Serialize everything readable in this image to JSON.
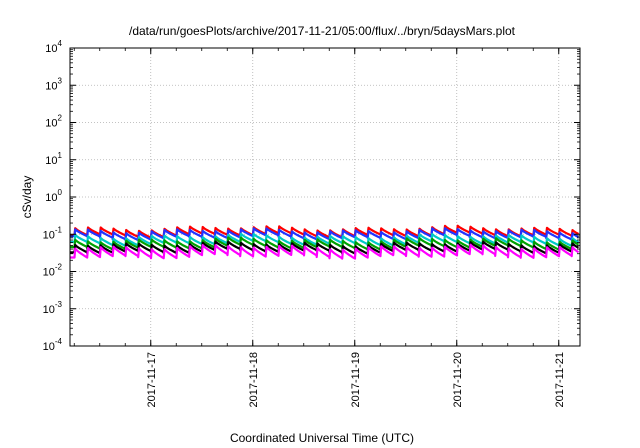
{
  "chart_data": {
    "type": "line",
    "title": "/data/run/goesPlots/archive/2017-11-21/05:00/flux/../bryn/5daysMars.plot",
    "xlabel": "Coordinated Universal Time (UTC)",
    "ylabel": "cSv/day",
    "yscale": "log",
    "ylim": [
      0.0001,
      10000
    ],
    "xlim": [
      "2017-11-16 05:00",
      "2017-11-21 05:00"
    ],
    "grid": true,
    "y_ticks": [
      {
        "base": "10",
        "exp": "-4",
        "value": 0.0001
      },
      {
        "base": "10",
        "exp": "-3",
        "value": 0.001
      },
      {
        "base": "10",
        "exp": "-2",
        "value": 0.01
      },
      {
        "base": "10",
        "exp": "-1",
        "value": 0.1
      },
      {
        "base": "10",
        "exp": "0",
        "value": 1
      },
      {
        "base": "10",
        "exp": "1",
        "value": 10
      },
      {
        "base": "10",
        "exp": "2",
        "value": 100
      },
      {
        "base": "10",
        "exp": "3",
        "value": 1000
      },
      {
        "base": "10",
        "exp": "4",
        "value": 10000
      }
    ],
    "x_ticks": [
      "2017-11-17",
      "2017-11-18",
      "2017-11-19",
      "2017-11-20",
      "2017-11-21"
    ],
    "cycles_per_day": 8,
    "series": [
      {
        "color": "#ff0000",
        "peak": 0.145,
        "trough": 0.095
      },
      {
        "color": "#2233ff",
        "peak": 0.125,
        "trough": 0.082
      },
      {
        "color": "#00c8c8",
        "peak": 0.088,
        "trough": 0.057
      },
      {
        "color": "#00a000",
        "peak": 0.07,
        "trough": 0.045
      },
      {
        "color": "#000000",
        "peak": 0.055,
        "trough": 0.035
      },
      {
        "color": "#ff00ff",
        "peak": 0.045,
        "trough": 0.026
      }
    ]
  }
}
